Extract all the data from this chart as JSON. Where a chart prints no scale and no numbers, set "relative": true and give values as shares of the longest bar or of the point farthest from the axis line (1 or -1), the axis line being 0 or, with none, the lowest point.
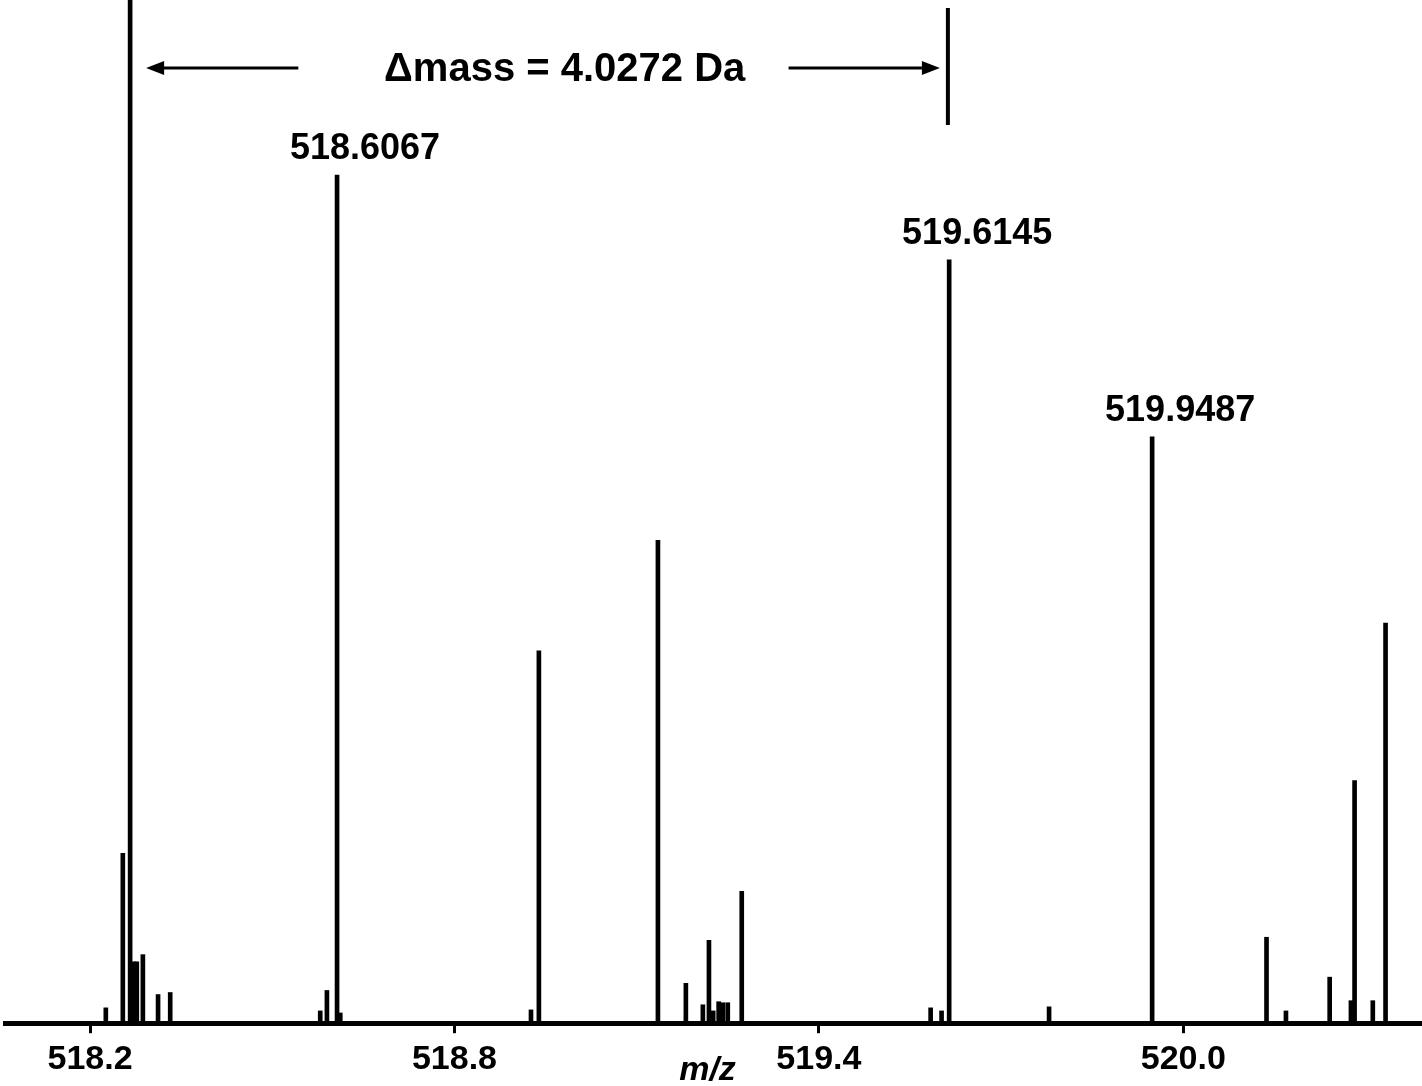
{
  "chart_data": {
    "type": "bar",
    "xlabel": "m/z",
    "relative": true,
    "x": [
      518.226,
      518.254,
      518.266,
      518.272,
      518.277,
      518.287,
      518.312,
      518.332,
      518.579,
      518.59,
      518.6067,
      518.612,
      518.926,
      518.939,
      519.135,
      519.181,
      519.209,
      519.219,
      519.226,
      519.235,
      519.242,
      519.25,
      519.273,
      519.584,
      519.602,
      519.6145,
      519.779,
      519.9487,
      520.137,
      520.169,
      520.241,
      520.276,
      520.282,
      520.312,
      520.333
    ],
    "values": [
      0.015,
      0.166,
      1,
      0.06,
      0.06,
      0.067,
      0.028,
      0.03,
      0.012,
      0.032,
      0.829,
      0.01,
      0.013,
      0.364,
      0.472,
      0.039,
      0.018,
      0.081,
      0.012,
      0.021,
      0.02,
      0.02,
      0.129,
      0.015,
      0.012,
      0.746,
      0.016,
      0.573,
      0.084,
      0.012,
      0.045,
      0.022,
      0.237,
      0.022,
      0.391
    ],
    "color": "#000000",
    "xlim": [
      518.06,
      520.393
    ],
    "xticks": [
      518.2,
      518.8,
      519.4,
      {
        "value": 520,
        "label": "520.0"
      }
    ],
    "grid": false,
    "legend": false,
    "annotations": [
      "Δmass = 4.0272 Da",
      {
        "text": "518.6067",
        "x": 518.6067,
        "y": 0.829
      },
      {
        "text": "519.6145",
        "x": 519.6145,
        "y": 0.746
      },
      {
        "text": "519.9487",
        "x": 519.9487,
        "y": 0.573
      }
    ]
  }
}
